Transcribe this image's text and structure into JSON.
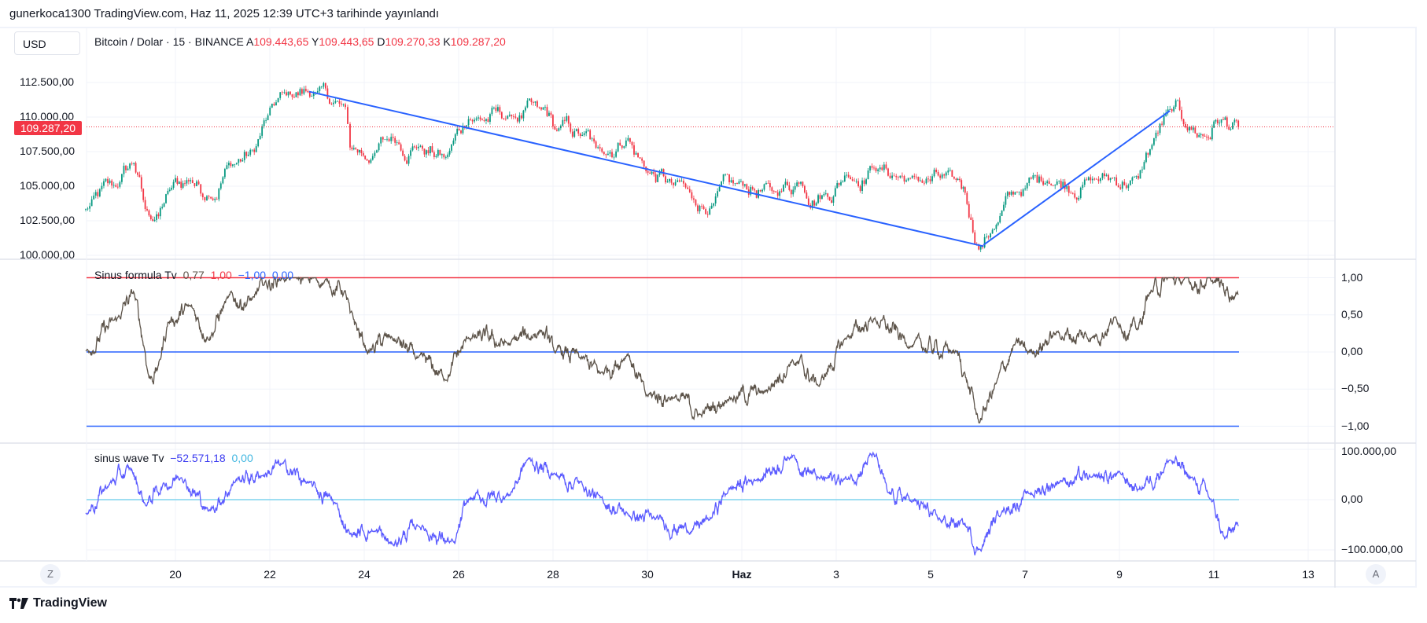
{
  "header": {
    "published": "gunerkoca1300 TradingView.com, Haz 11, 2025 12:39 UTC+3 tarihinde yayınlandı",
    "currency": "USD",
    "symbol": "Bitcoin / Dolar · 15 · BINANCE",
    "ohlc": [
      {
        "key": "A",
        "value": "109.443,65"
      },
      {
        "key": "Y",
        "value": "109.443,65"
      },
      {
        "key": "D",
        "value": "109.270,33"
      },
      {
        "key": "K",
        "value": "109.287,20"
      }
    ]
  },
  "price_axis": {
    "labels": [
      "112.500,00",
      "110.000,00",
      "107.500,00",
      "105.000,00",
      "102.500,00",
      "100.000,00"
    ],
    "current_price": "109.287,20"
  },
  "indicator1": {
    "name": "Sinus formula Tv",
    "values": [
      "0,77",
      "1,00",
      "−1,00",
      "0,00"
    ],
    "axis_labels": [
      "1,00",
      "0,50",
      "0,00",
      "−0,50",
      "−1,00"
    ]
  },
  "indicator2": {
    "name": "sinus wave Tv",
    "values": [
      "−52.571,18",
      "0,00"
    ],
    "axis_labels": [
      "100.000,00",
      "0,00",
      "−100.000,00"
    ]
  },
  "time_axis": {
    "labels": [
      {
        "text": "20",
        "day": -12
      },
      {
        "text": "22",
        "day": -10
      },
      {
        "text": "24",
        "day": -8
      },
      {
        "text": "26",
        "day": -6
      },
      {
        "text": "28",
        "day": -4
      },
      {
        "text": "30",
        "day": -2
      },
      {
        "text": "Haz",
        "day": 0
      },
      {
        "text": "3",
        "day": 2
      },
      {
        "text": "5",
        "day": 4
      },
      {
        "text": "7",
        "day": 6
      },
      {
        "text": "9",
        "day": 8
      },
      {
        "text": "11",
        "day": 10
      },
      {
        "text": "13",
        "day": 12
      }
    ],
    "left_button": "Z",
    "right_button": "A"
  },
  "footer": {
    "logo_text": "TradingView"
  },
  "colors": {
    "up": "#089981",
    "down": "#F23645",
    "trend": "#2962FF",
    "sinus": "#5d544a",
    "wave": "#5b5bff",
    "wave_zero": "#7fd3ee"
  },
  "chart_data": {
    "type": "candlestick",
    "x_unit": "days relative to Haz 1 (June 1, 2025)",
    "price_keypoints": [
      [
        -13.9,
        103300
      ],
      [
        -13.22,
        105000
      ],
      [
        -12.88,
        106700
      ],
      [
        -12.64,
        103200
      ],
      [
        -12.36,
        102800
      ],
      [
        -12.16,
        104500
      ],
      [
        -11.68,
        105500
      ],
      [
        -11.29,
        104500
      ],
      [
        -10.91,
        106500
      ],
      [
        -10.33,
        107500
      ],
      [
        -10.04,
        110000
      ],
      [
        -9.65,
        111500
      ],
      [
        -9.07,
        111800
      ],
      [
        -8.4,
        110500
      ],
      [
        -8.3,
        107700
      ],
      [
        -7.82,
        107200
      ],
      [
        -7.43,
        108500
      ],
      [
        -6.85,
        108000
      ],
      [
        -6.27,
        107000
      ],
      [
        -5.79,
        110000
      ],
      [
        -4.92,
        110000
      ],
      [
        -4.25,
        110300
      ],
      [
        -3.96,
        109000
      ],
      [
        -3.38,
        108600
      ],
      [
        -3.09,
        107500
      ],
      [
        -2.41,
        108600
      ],
      [
        -2.03,
        106200
      ],
      [
        -1.45,
        105000
      ],
      [
        -1.06,
        104000
      ],
      [
        -0.68,
        103500
      ],
      [
        -0.1,
        105000
      ],
      [
        0.68,
        104500
      ],
      [
        1.25,
        105500
      ],
      [
        1.74,
        104500
      ],
      [
        2.22,
        106000
      ],
      [
        2.8,
        106500
      ],
      [
        3.57,
        105500
      ],
      [
        4.54,
        105200
      ],
      [
        4.73,
        104500
      ],
      [
        5.02,
        100600
      ],
      [
        5.31,
        102000
      ],
      [
        5.79,
        104500
      ],
      [
        6.47,
        105500
      ],
      [
        7.43,
        105500
      ],
      [
        8.4,
        105500
      ],
      [
        8.69,
        108000
      ],
      [
        9.07,
        110300
      ],
      [
        9.36,
        109500
      ],
      [
        9.85,
        108600
      ],
      [
        10.04,
        109800
      ],
      [
        10.52,
        109287
      ]
    ],
    "trendlines": [
      {
        "from": [
          -9.17,
          111842
        ],
        "to": [
          5.12,
          100658
        ]
      },
      {
        "from": [
          5.12,
          100750
        ],
        "to": [
          9.07,
          110460
        ]
      }
    ],
    "ylim": [
      100000,
      113000
    ],
    "sinus_keypoints": [
      [
        -13.9,
        0
      ],
      [
        -13.22,
        0.45
      ],
      [
        -12.88,
        0.8
      ],
      [
        -12.64,
        0
      ],
      [
        -12.55,
        -0.35
      ],
      [
        -12.36,
        -0.2
      ],
      [
        -12.16,
        0.4
      ],
      [
        -11.68,
        0.6
      ],
      [
        -11.29,
        0.2
      ],
      [
        -10.91,
        0.7
      ],
      [
        -10.33,
        0.7
      ],
      [
        -10.14,
        0.9
      ],
      [
        -9.75,
        1.0
      ],
      [
        -8.78,
        0.95
      ],
      [
        -8.4,
        0.8
      ],
      [
        -8.3,
        0.5
      ],
      [
        -7.92,
        0
      ],
      [
        -7.43,
        0.2
      ],
      [
        -6.85,
        -0.1
      ],
      [
        -6.27,
        -0.35
      ],
      [
        -5.79,
        0.2
      ],
      [
        -4.92,
        0.1
      ],
      [
        -4.25,
        0.3
      ],
      [
        -3.96,
        0
      ],
      [
        -3.38,
        -0.1
      ],
      [
        -3.0,
        -0.3
      ],
      [
        -2.41,
        0
      ],
      [
        -2.03,
        -0.6
      ],
      [
        -1.45,
        -0.6
      ],
      [
        -0.87,
        -0.85
      ],
      [
        -0.29,
        -0.6
      ],
      [
        0.48,
        -0.55
      ],
      [
        1.06,
        -0.1
      ],
      [
        1.64,
        -0.45
      ],
      [
        2.22,
        0.2
      ],
      [
        2.8,
        0.45
      ],
      [
        3.57,
        0.1
      ],
      [
        4.54,
        0
      ],
      [
        4.73,
        -0.3
      ],
      [
        5.02,
        -0.95
      ],
      [
        5.41,
        -0.4
      ],
      [
        5.79,
        0.1
      ],
      [
        6.08,
        0
      ],
      [
        6.66,
        0.25
      ],
      [
        7.43,
        0.2
      ],
      [
        7.92,
        0.45
      ],
      [
        8.4,
        0.3
      ],
      [
        8.63,
        0.8
      ],
      [
        9.07,
        1.0
      ],
      [
        9.36,
        0.95
      ],
      [
        9.94,
        0.95
      ],
      [
        10.52,
        0.77
      ]
    ],
    "wave_keypoints": [
      [
        -13.9,
        -25000
      ],
      [
        -13.42,
        30000
      ],
      [
        -12.93,
        60000
      ],
      [
        -12.64,
        -10000
      ],
      [
        -12.26,
        30000
      ],
      [
        -11.87,
        50000
      ],
      [
        -11.29,
        -25000
      ],
      [
        -10.71,
        40000
      ],
      [
        -10.14,
        50000
      ],
      [
        -9.75,
        70000
      ],
      [
        -9.17,
        30000
      ],
      [
        -8.59,
        -10000
      ],
      [
        -8.3,
        -70000
      ],
      [
        -7.82,
        -60000
      ],
      [
        -7.43,
        -90000
      ],
      [
        -6.85,
        -50000
      ],
      [
        -6.08,
        -90000
      ],
      [
        -5.79,
        0
      ],
      [
        -4.92,
        10000
      ],
      [
        -4.54,
        80000
      ],
      [
        -3.96,
        50000
      ],
      [
        -3.38,
        30000
      ],
      [
        -3.0,
        0
      ],
      [
        -2.41,
        -30000
      ],
      [
        -1.83,
        -40000
      ],
      [
        -1.06,
        -60000
      ],
      [
        -0.68,
        -40000
      ],
      [
        -0.29,
        20000
      ],
      [
        0.29,
        40000
      ],
      [
        1.06,
        90000
      ],
      [
        1.64,
        40000
      ],
      [
        2.22,
        40000
      ],
      [
        2.8,
        90000
      ],
      [
        3.09,
        10000
      ],
      [
        3.57,
        0
      ],
      [
        4.15,
        -40000
      ],
      [
        4.73,
        -50000
      ],
      [
        5.02,
        -100000
      ],
      [
        5.5,
        -20000
      ],
      [
        6.08,
        10000
      ],
      [
        6.76,
        40000
      ],
      [
        7.43,
        40000
      ],
      [
        8.01,
        50000
      ],
      [
        8.4,
        20000
      ],
      [
        9.07,
        80000
      ],
      [
        9.56,
        40000
      ],
      [
        9.94,
        0
      ],
      [
        10.23,
        -80000
      ],
      [
        10.52,
        -52571
      ]
    ],
    "sinus_levels": [
      1,
      0,
      -1
    ],
    "sinus_ylim": [
      -1,
      1
    ],
    "wave_ylim": [
      -100000,
      100000
    ]
  }
}
